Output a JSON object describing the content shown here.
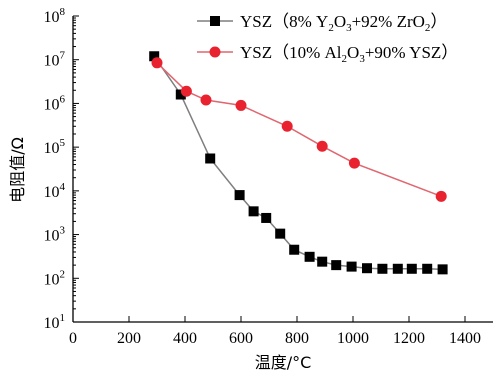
{
  "chart_data": {
    "type": "line",
    "xlabel": "温度/°C",
    "ylabel": "电阻值/Ω",
    "xlim": [
      0,
      1500
    ],
    "ylim_log10": [
      1,
      8
    ],
    "y_scale": "log",
    "x_ticks": [
      "0",
      "200",
      "400",
      "600",
      "800",
      "1000",
      "1200",
      "1400"
    ],
    "y_tick_base": "10",
    "y_tick_exponents": [
      "1",
      "2",
      "3",
      "4",
      "5",
      "6",
      "7",
      "8"
    ],
    "legend_position": "top-right",
    "series": [
      {
        "name": "YSZ（8% Y2O3+92% ZrO2）",
        "legend_parts": [
          {
            "t": "YSZ（8% Y"
          },
          {
            "t": "2",
            "sub": true
          },
          {
            "t": "O"
          },
          {
            "t": "3",
            "sub": true
          },
          {
            "t": "+92% ZrO"
          },
          {
            "t": "2",
            "sub": true
          },
          {
            "t": "）"
          }
        ],
        "color": "#7f7f7f",
        "marker_color": "#000000",
        "marker": "square",
        "x": [
          290,
          385,
          490,
          595,
          645,
          690,
          740,
          790,
          845,
          890,
          940,
          995,
          1050,
          1105,
          1160,
          1210,
          1265,
          1320
        ],
        "y": [
          12000000,
          1600000,
          55000,
          8000,
          3400,
          2400,
          1050,
          450,
          310,
          240,
          200,
          185,
          170,
          165,
          165,
          165,
          165,
          160
        ]
      },
      {
        "name": "YSZ（10% Al2O3+90% YSZ）",
        "legend_parts": [
          {
            "t": "YSZ（10% Al"
          },
          {
            "t": "2",
            "sub": true
          },
          {
            "t": "O"
          },
          {
            "t": "3",
            "sub": true
          },
          {
            "t": "+90% YSZ）"
          }
        ],
        "color": "#e06670",
        "marker_color": "#e8232f",
        "marker": "circle",
        "x": [
          300,
          405,
          475,
          600,
          765,
          890,
          1005,
          1315
        ],
        "y": [
          8500000,
          1900000,
          1200000,
          900000,
          300000,
          105000,
          43000,
          7500
        ]
      }
    ]
  }
}
